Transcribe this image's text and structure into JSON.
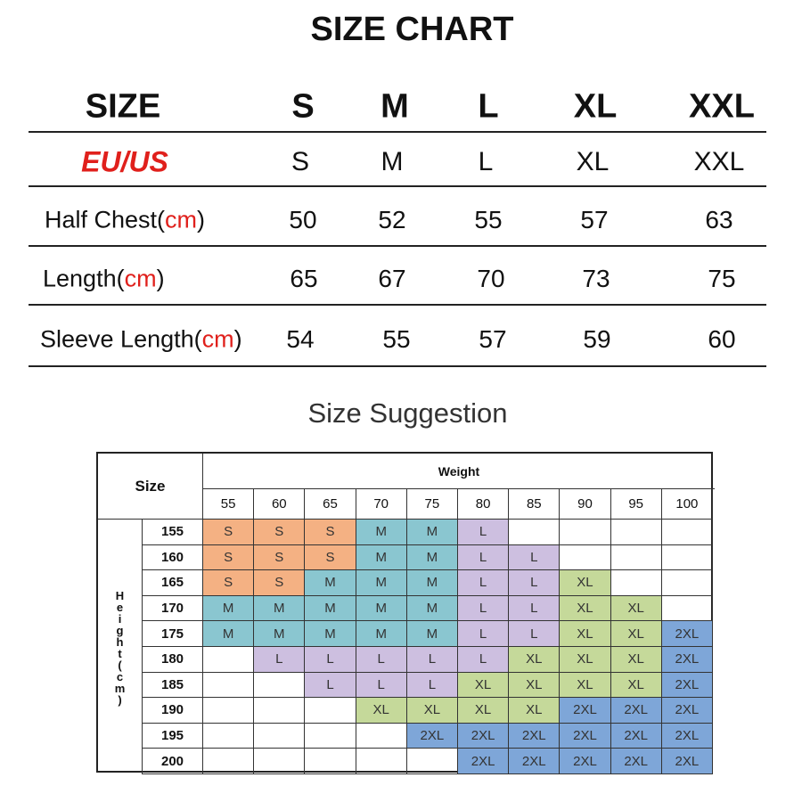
{
  "title": "SIZE CHART",
  "size_table": {
    "header_label": "SIZE",
    "sizes": [
      "S",
      "M",
      "L",
      "XL",
      "XXL"
    ],
    "region_label": "EU/US",
    "region_sizes": [
      "S",
      "M",
      "L",
      "XL",
      "XXL"
    ],
    "rows": [
      {
        "label": "Half Chest(",
        "unit": "cm",
        "close": ")",
        "values": [
          "50",
          "52",
          "55",
          "57",
          "63"
        ]
      },
      {
        "label": "Length(",
        "unit": "cm",
        "close": ")",
        "values": [
          "65",
          "67",
          "70",
          "73",
          "75"
        ]
      },
      {
        "label": "Sleeve Length(",
        "unit": "cm",
        "close": ")",
        "values": [
          "54",
          "55",
          "57",
          "59",
          "60"
        ]
      }
    ]
  },
  "suggestion": {
    "title": "Size Suggestion",
    "corner": "Size",
    "weight_label": "Weight",
    "height_label": "Height(cm)",
    "weights": [
      "55",
      "60",
      "65",
      "70",
      "75",
      "80",
      "85",
      "90",
      "95",
      "100"
    ],
    "heights": [
      "155",
      "160",
      "165",
      "170",
      "175",
      "180",
      "185",
      "190",
      "195",
      "200"
    ],
    "grid": [
      [
        "S",
        "S",
        "S",
        "M",
        "M",
        "L",
        "",
        "",
        "",
        ""
      ],
      [
        "S",
        "S",
        "S",
        "M",
        "M",
        "L",
        "L",
        "",
        "",
        ""
      ],
      [
        "S",
        "S",
        "M",
        "M",
        "M",
        "L",
        "L",
        "XL",
        "",
        ""
      ],
      [
        "M",
        "M",
        "M",
        "M",
        "M",
        "L",
        "L",
        "XL",
        "XL",
        ""
      ],
      [
        "M",
        "M",
        "M",
        "M",
        "M",
        "L",
        "L",
        "XL",
        "XL",
        "2XL"
      ],
      [
        "",
        "L",
        "L",
        "L",
        "L",
        "L",
        "XL",
        "XL",
        "XL",
        "2XL"
      ],
      [
        "",
        "",
        "L",
        "L",
        "L",
        "XL",
        "XL",
        "XL",
        "XL",
        "2XL"
      ],
      [
        "",
        "",
        "",
        "XL",
        "XL",
        "XL",
        "XL",
        "2XL",
        "2XL",
        "2XL"
      ],
      [
        "",
        "",
        "",
        "",
        "2XL",
        "2XL",
        "2XL",
        "2XL",
        "2XL",
        "2XL"
      ],
      [
        "",
        "",
        "",
        "",
        "",
        "2XL",
        "2XL",
        "2XL",
        "2XL",
        "2XL"
      ]
    ],
    "colors": {
      "S": "#f4b183",
      "M": "#8ac6d0",
      "L": "#cdbfe0",
      "XL": "#c5d99a",
      "2XL": "#7ea6d8"
    }
  },
  "accent_color": "#e0201c"
}
